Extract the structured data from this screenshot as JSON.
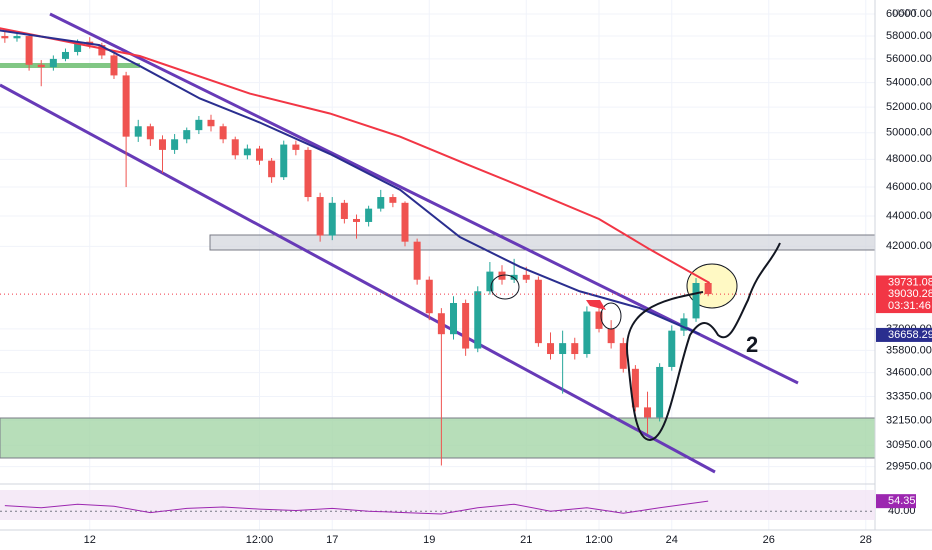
{
  "chart_data": {
    "type": "candlestick",
    "currency": "USDT",
    "log_scale": true,
    "grid": true,
    "up_color": "#26a69a",
    "down_color": "#ef5350",
    "xlim": [
      10.15,
      28.19
    ],
    "ylim": [
      29250,
      61300
    ],
    "xticks": [
      {
        "value": 12,
        "label": "12"
      },
      {
        "value": 15.5,
        "label": "12:00"
      },
      {
        "value": 17,
        "label": "17"
      },
      {
        "value": 19,
        "label": "19"
      },
      {
        "value": 21,
        "label": "21"
      },
      {
        "value": 22.5,
        "label": "12:00"
      },
      {
        "value": 24,
        "label": "24"
      },
      {
        "value": 26,
        "label": "26"
      },
      {
        "value": 28,
        "label": "28"
      }
    ],
    "yticks": [
      {
        "value": 60000,
        "label": "60000.00"
      },
      {
        "value": 58000,
        "label": "58000.00"
      },
      {
        "value": 56000,
        "label": "56000.00"
      },
      {
        "value": 54000,
        "label": "54000.00"
      },
      {
        "value": 52000,
        "label": "52000.00"
      },
      {
        "value": 50000,
        "label": "50000.00"
      },
      {
        "value": 48000,
        "label": "48000.00"
      },
      {
        "value": 46000,
        "label": "46000.00"
      },
      {
        "value": 44000,
        "label": "44000.00"
      },
      {
        "value": 42000,
        "label": "42000.00"
      },
      {
        "value": 37000,
        "label": "37000.00"
      },
      {
        "value": 35800,
        "label": "35800.00"
      },
      {
        "value": 34600,
        "label": "34600.00"
      },
      {
        "value": 33350,
        "label": "33350.00"
      },
      {
        "value": 32150,
        "label": "32150.00"
      },
      {
        "value": 30950,
        "label": "30950.00"
      },
      {
        "value": 29950,
        "label": "29950.00"
      }
    ],
    "x": [
      10,
      10.25,
      10.5,
      10.75,
      11,
      11.25,
      11.5,
      11.75,
      12,
      12.25,
      12.5,
      12.75,
      13,
      13.25,
      13.5,
      13.75,
      14,
      14.25,
      14.5,
      14.75,
      15,
      15.25,
      15.5,
      15.75,
      16,
      16.25,
      16.5,
      16.75,
      17,
      17.25,
      17.5,
      17.75,
      18,
      18.25,
      18.5,
      18.75,
      19,
      19.25,
      19.5,
      19.75,
      20,
      20.25,
      20.5,
      20.75,
      21,
      21.25,
      21.5,
      21.75,
      22,
      22.25,
      22.5,
      22.75,
      23,
      23.25,
      23.5,
      23.75,
      24,
      24.25,
      24.5,
      24.75
    ],
    "ohlc": [
      [
        58300,
        58600,
        57600,
        58000
      ],
      [
        58000,
        58500,
        57400,
        57800
      ],
      [
        57800,
        58300,
        57500,
        58000
      ],
      [
        58000,
        58200,
        55000,
        55500
      ],
      [
        55500,
        55900,
        53700,
        55300
      ],
      [
        55300,
        56300,
        55000,
        56000
      ],
      [
        56000,
        56900,
        55800,
        56600
      ],
      [
        56600,
        57700,
        56300,
        57500
      ],
      [
        57500,
        57900,
        56900,
        57200
      ],
      [
        57200,
        57400,
        56000,
        56300
      ],
      [
        56300,
        56500,
        54300,
        54600
      ],
      [
        54600,
        54900,
        46000,
        49700
      ],
      [
        49700,
        51000,
        49300,
        50500
      ],
      [
        50500,
        50700,
        49000,
        49500
      ],
      [
        49500,
        49800,
        47000,
        48700
      ],
      [
        48700,
        49900,
        48400,
        49500
      ],
      [
        49500,
        50400,
        49200,
        50200
      ],
      [
        50200,
        51300,
        49900,
        51000
      ],
      [
        51000,
        51400,
        50100,
        50500
      ],
      [
        50500,
        50700,
        49200,
        49500
      ],
      [
        49500,
        49700,
        48000,
        48300
      ],
      [
        48300,
        49100,
        48000,
        48800
      ],
      [
        48800,
        49000,
        47600,
        47900
      ],
      [
        47900,
        48100,
        46300,
        46700
      ],
      [
        46700,
        49400,
        46500,
        49100
      ],
      [
        49100,
        49400,
        48300,
        48700
      ],
      [
        48700,
        48900,
        45000,
        45300
      ],
      [
        45300,
        45600,
        42300,
        42700
      ],
      [
        42700,
        45300,
        42400,
        44900
      ],
      [
        44900,
        45100,
        43500,
        43800
      ],
      [
        43800,
        44100,
        42500,
        43600
      ],
      [
        43600,
        44700,
        43300,
        44500
      ],
      [
        44500,
        45800,
        44300,
        45300
      ],
      [
        45300,
        45500,
        44600,
        44900
      ],
      [
        44900,
        45000,
        42000,
        42300
      ],
      [
        42300,
        42500,
        39600,
        39900
      ],
      [
        39900,
        40100,
        37500,
        37900
      ],
      [
        37900,
        38200,
        30000,
        36700
      ],
      [
        36700,
        38900,
        36400,
        38500
      ],
      [
        38500,
        38700,
        35500,
        35900
      ],
      [
        35900,
        39500,
        35700,
        39200
      ],
      [
        39200,
        41000,
        39000,
        40400
      ],
      [
        40400,
        40800,
        39600,
        39900
      ],
      [
        39900,
        41200,
        39700,
        40200
      ],
      [
        40200,
        40700,
        39700,
        39900
      ],
      [
        39900,
        40100,
        36000,
        36200
      ],
      [
        36200,
        36800,
        35300,
        35600
      ],
      [
        35600,
        36900,
        33500,
        36200
      ],
      [
        36200,
        36500,
        35300,
        35600
      ],
      [
        35600,
        38300,
        35400,
        38000
      ],
      [
        38000,
        38400,
        36800,
        37000
      ],
      [
        37000,
        37500,
        35900,
        36200
      ],
      [
        36200,
        36500,
        34600,
        34800
      ],
      [
        34800,
        35000,
        32600,
        32800
      ],
      [
        32800,
        33600,
        31500,
        32300
      ],
      [
        32300,
        35100,
        32100,
        34900
      ],
      [
        34900,
        37200,
        34700,
        36900
      ],
      [
        36900,
        37900,
        36600,
        37600
      ],
      [
        37600,
        40000,
        37400,
        39700
      ],
      [
        39700,
        39800,
        38900,
        39030
      ]
    ],
    "moving_averages": [
      {
        "color": "#f23645",
        "x": [
          10.14,
          13.03,
          15.3,
          16.95,
          18.4,
          19.8,
          21.07,
          22.5,
          23.55,
          24.78
        ],
        "values": [
          58700,
          56250,
          53100,
          51500,
          49700,
          47600,
          45800,
          43800,
          41800,
          39700
        ]
      },
      {
        "color": "#2a2e8f",
        "x": [
          10.14,
          12.2,
          13.03,
          14.27,
          15.5,
          16.95,
          18.4,
          19.63,
          20.87,
          22.1,
          23.34,
          24.58
        ],
        "values": [
          58500,
          57200,
          55400,
          52700,
          50800,
          48400,
          45800,
          42600,
          40700,
          39200,
          38200,
          36700
        ]
      }
    ],
    "price_labels": [
      {
        "value": 39731.08,
        "color": "#f23645"
      },
      {
        "value": 39030.28,
        "color": "#f23645",
        "countdown": "03:31:46"
      },
      {
        "value": 36658.29,
        "color": "#2a2e8f"
      }
    ],
    "annotations": [
      "2"
    ],
    "rsi": {
      "color": "#9c27b0",
      "ylim": [
        16,
        76
      ],
      "yticks": [
        {
          "value": 40,
          "label": "40.00"
        }
      ],
      "x": [
        10.25,
        11,
        11.75,
        12.5,
        13.25,
        14,
        14.75,
        15.5,
        16.25,
        17,
        17.75,
        18.5,
        19.25,
        20,
        20.75,
        21.5,
        22.25,
        23,
        23.75,
        24.75
      ],
      "values": [
        48,
        45,
        50,
        47,
        38,
        44,
        46,
        43,
        41,
        44,
        40,
        38,
        36,
        45,
        50,
        40,
        45,
        37,
        45,
        54.35
      ],
      "label": {
        "value": 54.35,
        "color": "#9c27b0"
      }
    }
  }
}
